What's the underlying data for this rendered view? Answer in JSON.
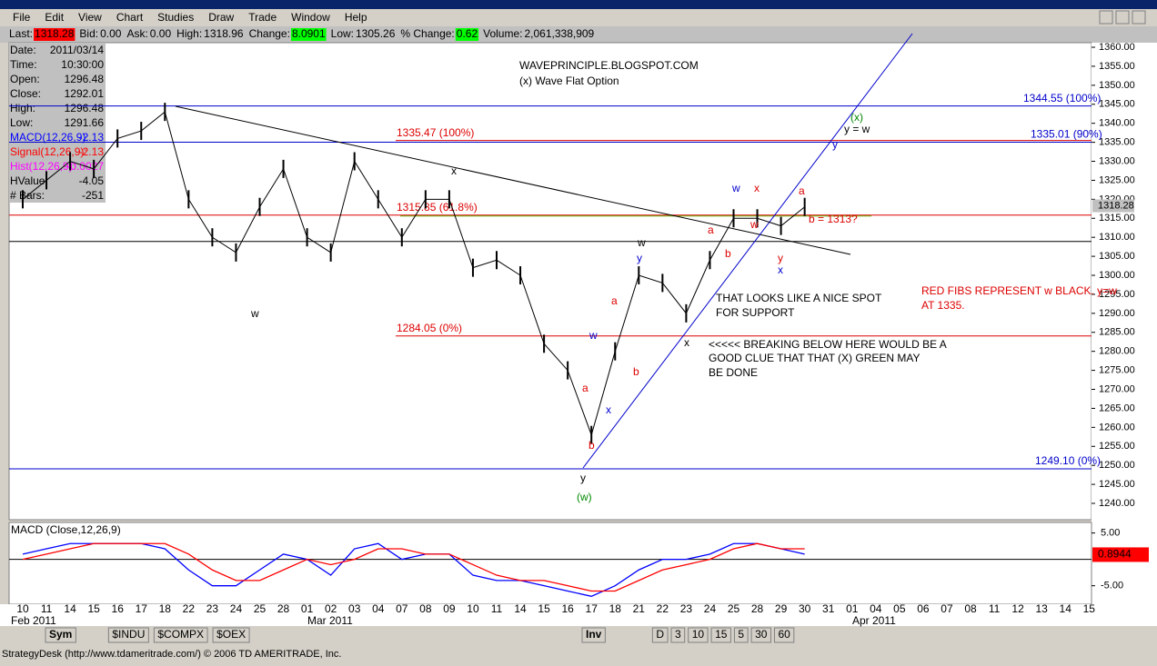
{
  "menu": [
    "File",
    "Edit",
    "View",
    "Chart",
    "Studies",
    "Draw",
    "Trade",
    "Window",
    "Help"
  ],
  "quote": [
    {
      "label": "Last:",
      "value": "1318.28",
      "bg": "#ff0000"
    },
    {
      "label": "Bid:",
      "value": "0.00"
    },
    {
      "label": "Ask:",
      "value": "0.00"
    },
    {
      "label": "High:",
      "value": "1318.96"
    },
    {
      "label": "Change:",
      "value": "8.0901",
      "bg": "#00ff00"
    },
    {
      "label": "Low:",
      "value": "1305.26"
    },
    {
      "label": "% Change:",
      "value": "0.62",
      "bg": "#00ff00"
    },
    {
      "label": "Volume:",
      "value": "2,061,338,909"
    }
  ],
  "info": [
    {
      "label": "Date:",
      "value": "2011/03/14",
      "color": "#000000"
    },
    {
      "label": "Time:",
      "value": "10:30:00",
      "color": "#000000"
    },
    {
      "label": "Open:",
      "value": "1296.48",
      "color": "#000000"
    },
    {
      "label": "Close:",
      "value": "1292.01",
      "color": "#000000"
    },
    {
      "label": "High:",
      "value": "1296.48",
      "color": "#000000"
    },
    {
      "label": "Low:",
      "value": "1291.66",
      "color": "#000000"
    },
    {
      "label": "MACD(12,26,9):",
      "value": "-2.13",
      "color": "#0000ff"
    },
    {
      "label": "Signal(12,26,9):",
      "value": "-2.13",
      "color": "#ff0000"
    },
    {
      "label": "Hist(12,26,9):",
      "value": "-0.0027",
      "color": "#ff00ff"
    },
    {
      "label": "HValue:",
      "value": "-4.05",
      "color": "#000000"
    },
    {
      "label": "# Bars:",
      "value": "-251",
      "color": "#000000"
    }
  ],
  "chart_data": {
    "type": "line",
    "categories": [
      "10",
      "11",
      "14",
      "15",
      "16",
      "17",
      "18",
      "22",
      "23",
      "24",
      "25",
      "28",
      "01",
      "02",
      "03",
      "04",
      "07",
      "08",
      "09",
      "10",
      "11",
      "14",
      "15",
      "16",
      "17",
      "18",
      "21",
      "22",
      "23",
      "24",
      "25",
      "28",
      "29",
      "30",
      "31",
      "01",
      "04",
      "05",
      "06",
      "07",
      "08",
      "11",
      "12",
      "13",
      "14",
      "15"
    ],
    "month_labels": [
      "Feb 2011",
      "Mar 2011",
      "Apr 2011"
    ],
    "series": [
      {
        "name": "Close",
        "color": "#000000",
        "values": [
          1320,
          1325,
          1330,
          1328,
          1336,
          1338,
          1343,
          1320,
          1310,
          1306,
          1318,
          1328,
          1310,
          1306,
          1330,
          1320,
          1310,
          1320,
          1320,
          1302,
          1304,
          1300,
          1282,
          1275,
          1258,
          1280,
          1300,
          1298,
          1290,
          1304,
          1315,
          1315,
          1313,
          1318,
          null,
          null,
          null,
          null,
          null,
          null,
          null,
          null,
          null,
          null,
          null,
          null
        ]
      }
    ],
    "ylim": [
      1235.7,
      1361.2
    ],
    "yticks": [
      {
        "value": 1360,
        "label": "1360.00"
      },
      {
        "value": 1355,
        "label": "1355.00"
      },
      {
        "value": 1350,
        "label": "1350.00"
      },
      {
        "value": 1345,
        "label": "1345.00"
      },
      {
        "value": 1340,
        "label": "1340.00"
      },
      {
        "value": 1335,
        "label": "1335.00"
      },
      {
        "value": 1330,
        "label": "1330.00"
      },
      {
        "value": 1325,
        "label": "1325.00"
      },
      {
        "value": 1320,
        "label": "1320.00"
      },
      {
        "value": 1315,
        "label": "1315.00"
      },
      {
        "value": 1310,
        "label": "1310.00"
      },
      {
        "value": 1305,
        "label": "1305.00"
      },
      {
        "value": 1300,
        "label": "1300.00"
      },
      {
        "value": 1295,
        "label": "1295.00"
      },
      {
        "value": 1290,
        "label": "1290.00"
      },
      {
        "value": 1285,
        "label": "1285.00"
      },
      {
        "value": 1280,
        "label": "1280.00"
      },
      {
        "value": 1275,
        "label": "1275.00"
      },
      {
        "value": 1270,
        "label": "1270.00"
      },
      {
        "value": 1265,
        "label": "1265.00"
      },
      {
        "value": 1260,
        "label": "1260.00"
      },
      {
        "value": 1255,
        "label": "1255.00"
      },
      {
        "value": 1250,
        "label": "1250.00"
      },
      {
        "value": 1245,
        "label": "1245.00"
      },
      {
        "value": 1240,
        "label": "1240.00"
      }
    ],
    "last_price": {
      "value": 1318.28,
      "label": "1318.28"
    },
    "levels": [
      {
        "value": 1344.55,
        "label": "1344.55 (100%)",
        "color": "#0000cc"
      },
      {
        "value": 1335.01,
        "label": "1335.01 (90%)",
        "color": "#0000cc"
      },
      {
        "value": 1335.47,
        "label": "1335.47 (100%)",
        "color": "#dd0000"
      },
      {
        "value": 1315.85,
        "label": "1315.85 (61.8%)",
        "color": "#dd0000"
      },
      {
        "value": 1308.9,
        "color": "#000000"
      },
      {
        "value": 1284.05,
        "label": "1284.05 (0%)",
        "color": "#dd0000"
      },
      {
        "value": 1249.1,
        "label": "1249.10 (0%)",
        "color": "#0000cc"
      }
    ],
    "annotations": [
      {
        "text": "WAVEPRINCIPLE.BLOGSPOT.COM",
        "color": "#000000"
      },
      {
        "text": "(x) Wave Flat Option",
        "color": "#000000"
      },
      {
        "text": "w",
        "color": "#000000"
      },
      {
        "text": "x",
        "color": "#000000"
      },
      {
        "text": "w",
        "color": "#000000"
      },
      {
        "text": "y",
        "color": "#0000cc"
      },
      {
        "text": "a",
        "color": "#dd0000"
      },
      {
        "text": "w",
        "color": "#0000cc"
      },
      {
        "text": "b",
        "color": "#dd0000"
      },
      {
        "text": "a",
        "color": "#dd0000"
      },
      {
        "text": "x",
        "color": "#0000cc"
      },
      {
        "text": "b",
        "color": "#dd0000"
      },
      {
        "text": "y",
        "color": "#000000"
      },
      {
        "text": "(w)",
        "color": "#008800"
      },
      {
        "text": "x",
        "color": "#000000"
      },
      {
        "text": "a",
        "color": "#dd0000"
      },
      {
        "text": "b",
        "color": "#dd0000"
      },
      {
        "text": "w",
        "color": "#0000cc"
      },
      {
        "text": "x",
        "color": "#dd0000"
      },
      {
        "text": "w",
        "color": "#dd0000"
      },
      {
        "text": "a",
        "color": "#dd0000"
      },
      {
        "text": "b = 1313?",
        "color": "#dd0000"
      },
      {
        "text": "y",
        "color": "#dd0000"
      },
      {
        "text": "x",
        "color": "#0000cc"
      },
      {
        "text": "(x)",
        "color": "#008800"
      },
      {
        "text": "y = w",
        "color": "#000000"
      },
      {
        "text": "y",
        "color": "#0000cc"
      },
      {
        "text": "THAT LOOKS LIKE A NICE SPOT",
        "color": "#000000"
      },
      {
        "text": "FOR SUPPORT",
        "color": "#000000"
      },
      {
        "text": "<<<<< BREAKING BELOW HERE WOULD BE A",
        "color": "#000000"
      },
      {
        "text": "GOOD CLUE THAT THAT (X) GREEN MAY",
        "color": "#000000"
      },
      {
        "text": "BE DONE",
        "color": "#000000"
      },
      {
        "text": "RED FIBS REPRESENT w BLACK. y=w",
        "color": "#dd0000"
      },
      {
        "text": "AT 1335.",
        "color": "#dd0000"
      }
    ],
    "macd": {
      "title": "MACD (Close,12,26,9)",
      "ylim": [
        -8.5,
        7
      ],
      "yticks": [
        {
          "value": 5,
          "label": "5.00"
        },
        {
          "value": -5,
          "label": "-5.00"
        }
      ],
      "last": {
        "value": 0.8944,
        "label": "0.8944"
      },
      "series": [
        {
          "name": "MACD",
          "color": "#0000ff",
          "values": [
            1,
            2,
            3,
            3,
            3,
            3,
            2,
            -2,
            -5,
            -5,
            -2,
            1,
            0,
            -3,
            2,
            3,
            0,
            1,
            1,
            -3,
            -4,
            -4,
            -5,
            -6,
            -7,
            -5,
            -2,
            0,
            0,
            1,
            3,
            3,
            2,
            1,
            null,
            null,
            null,
            null,
            null,
            null,
            null,
            null,
            null,
            null,
            null,
            null
          ]
        },
        {
          "name": "Signal",
          "color": "#ff0000",
          "values": [
            0,
            1,
            2,
            3,
            3,
            3,
            3,
            1,
            -2,
            -4,
            -4,
            -2,
            0,
            -1,
            0,
            2,
            2,
            1,
            1,
            -1,
            -3,
            -4,
            -4,
            -5,
            -6,
            -6,
            -4,
            -2,
            -1,
            0,
            2,
            3,
            2,
            2,
            null,
            null,
            null,
            null,
            null,
            null,
            null,
            null,
            null,
            null,
            null,
            null
          ]
        }
      ]
    }
  },
  "tabs": [
    "Sym",
    "$INDU",
    "$COMPX",
    "$OEX"
  ],
  "periods": [
    "Inv",
    "D",
    "3",
    "10",
    "15",
    "5",
    "30",
    "60"
  ],
  "status": "StrategyDesk (http://www.tdameritrade.com/) © 2006 TD AMERITRADE, Inc."
}
